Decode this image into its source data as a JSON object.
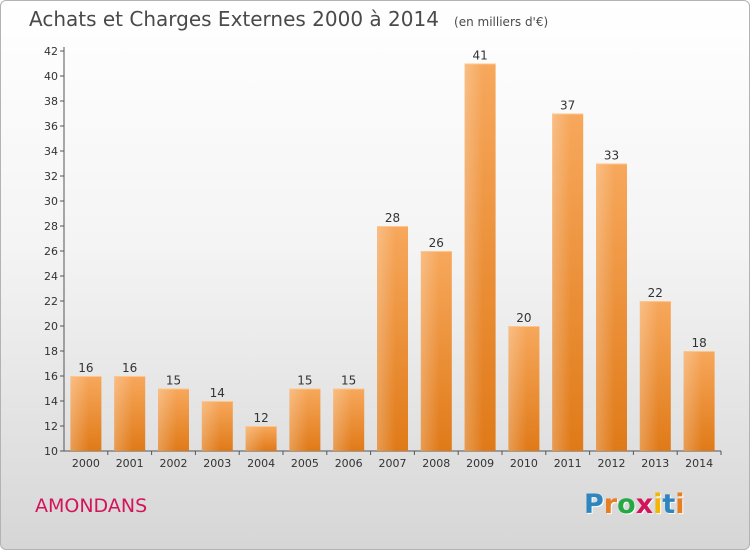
{
  "chart_data": {
    "type": "bar",
    "title": "Achats et Charges Externes 2000 à 2014",
    "unit_note": "(en milliers d'€)",
    "categories": [
      "2000",
      "2001",
      "2002",
      "2003",
      "2004",
      "2005",
      "2006",
      "2007",
      "2008",
      "2009",
      "2010",
      "2011",
      "2012",
      "2013",
      "2014"
    ],
    "values": [
      16,
      16,
      15,
      14,
      12,
      15,
      15,
      28,
      26,
      41,
      20,
      37,
      33,
      22,
      18
    ],
    "ylim": [
      10,
      42
    ],
    "yticks": [
      10,
      12,
      14,
      16,
      18,
      20,
      22,
      24,
      26,
      28,
      30,
      32,
      34,
      36,
      38,
      40,
      42
    ],
    "xlabel": "",
    "ylabel": "",
    "grid": false,
    "bar_color": "#f08a24",
    "bar_color_light": "#f7a65a"
  },
  "footer": {
    "commune": "AMONDANS",
    "brand": "Proxiti",
    "brand_letters": [
      "P",
      "r",
      "o",
      "x",
      "i",
      "t",
      "i"
    ]
  },
  "colors": {
    "commune_text": "#d4145a",
    "title_text": "#4a4a4a",
    "axis": "#555555"
  }
}
